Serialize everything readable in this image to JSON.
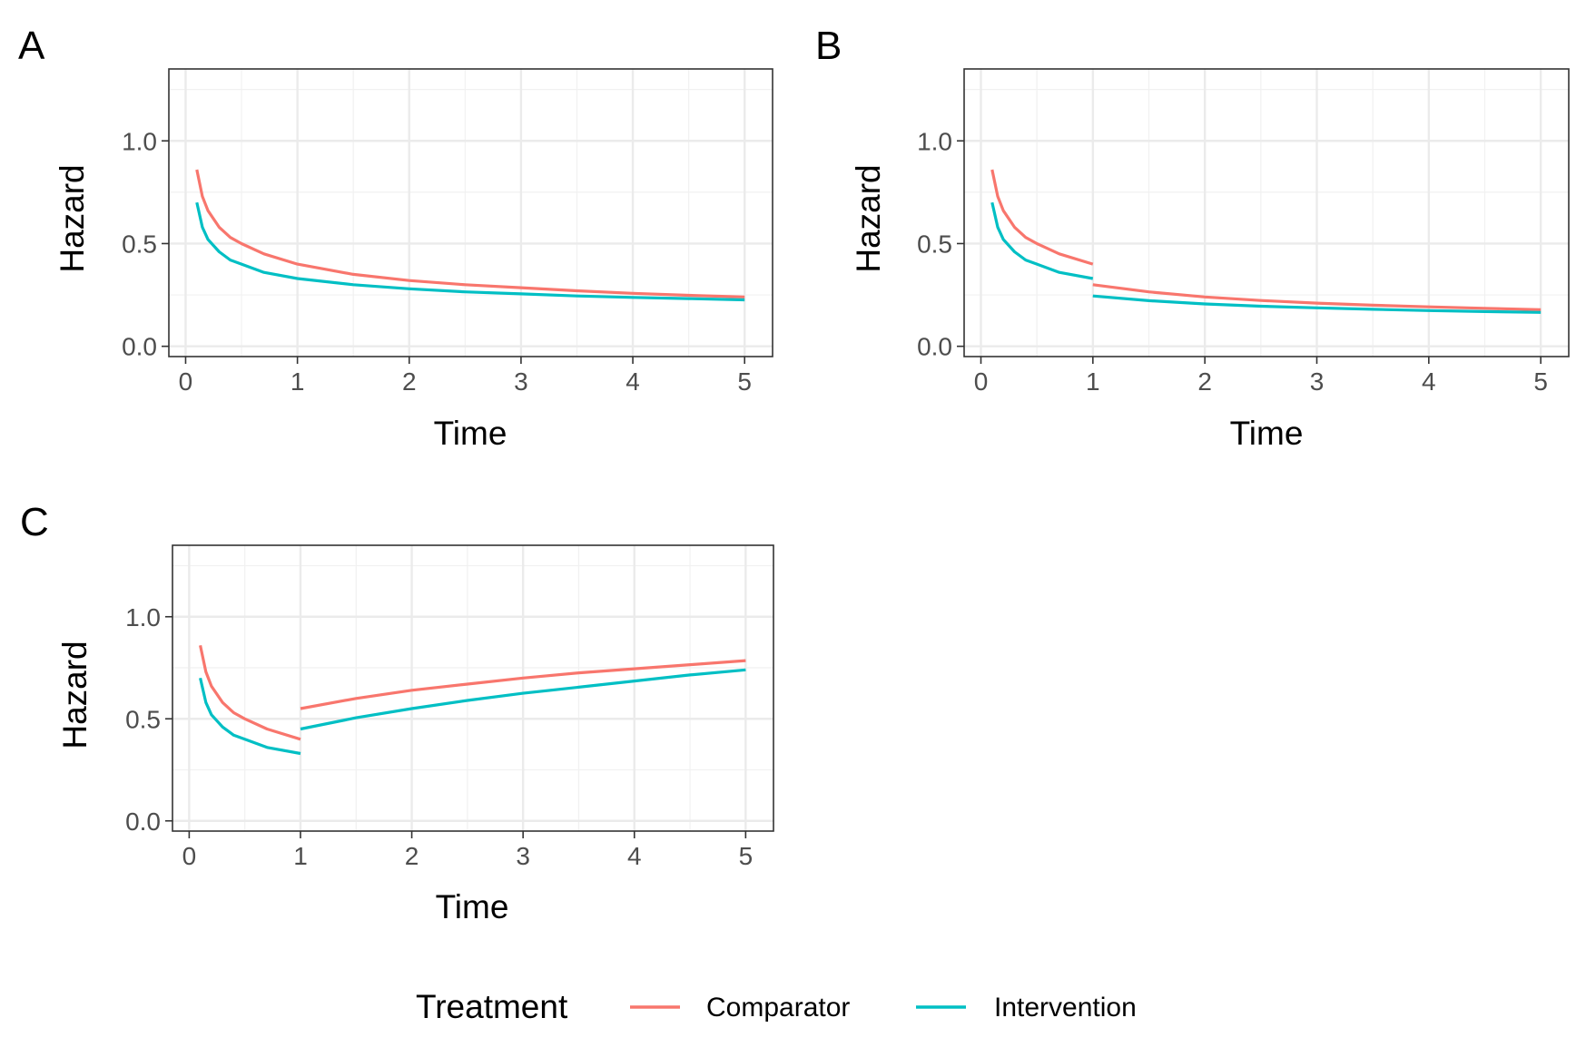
{
  "chart_data": [
    {
      "type": "line",
      "tag": "A",
      "xlabel": "Time",
      "ylabel": "Hazard",
      "xlim": [
        -0.15,
        5.25
      ],
      "ylim": [
        -0.05,
        1.35
      ],
      "xticks": [
        0,
        1,
        2,
        3,
        4,
        5
      ],
      "xtick_labels": [
        "0",
        "1",
        "2",
        "3",
        "4",
        "5"
      ],
      "yticks": [
        0,
        0.5,
        1
      ],
      "ytick_labels": [
        "0.0",
        "0.5",
        "1.0"
      ],
      "grid": true,
      "series": [
        {
          "name": "Comparator",
          "color": "#F8766D",
          "x": [
            0.1,
            0.15,
            0.2,
            0.3,
            0.4,
            0.5,
            0.7,
            1.0,
            1.5,
            2.0,
            2.5,
            3.0,
            3.5,
            4.0,
            4.5,
            5.0
          ],
          "y": [
            0.86,
            0.73,
            0.66,
            0.58,
            0.53,
            0.5,
            0.45,
            0.4,
            0.35,
            0.32,
            0.3,
            0.285,
            0.27,
            0.258,
            0.248,
            0.24
          ]
        },
        {
          "name": "Intervention",
          "color": "#00BFC4",
          "x": [
            0.1,
            0.15,
            0.2,
            0.3,
            0.4,
            0.5,
            0.7,
            1.0,
            1.5,
            2.0,
            2.5,
            3.0,
            3.5,
            4.0,
            4.5,
            5.0
          ],
          "y": [
            0.7,
            0.58,
            0.52,
            0.46,
            0.42,
            0.4,
            0.36,
            0.33,
            0.3,
            0.28,
            0.265,
            0.255,
            0.245,
            0.238,
            0.232,
            0.226
          ]
        }
      ]
    },
    {
      "type": "line",
      "tag": "B",
      "xlabel": "Time",
      "ylabel": "Hazard",
      "xlim": [
        -0.15,
        5.25
      ],
      "ylim": [
        -0.05,
        1.35
      ],
      "xticks": [
        0,
        1,
        2,
        3,
        4,
        5
      ],
      "xtick_labels": [
        "0",
        "1",
        "2",
        "3",
        "4",
        "5"
      ],
      "yticks": [
        0,
        0.5,
        1
      ],
      "ytick_labels": [
        "0.0",
        "0.5",
        "1.0"
      ],
      "grid": true,
      "series": [
        {
          "name": "Comparator",
          "color": "#F8766D",
          "segments": [
            {
              "x": [
                0.1,
                0.15,
                0.2,
                0.3,
                0.4,
                0.5,
                0.7,
                1.0
              ],
              "y": [
                0.86,
                0.73,
                0.66,
                0.58,
                0.53,
                0.5,
                0.45,
                0.4
              ]
            },
            {
              "x": [
                1.0,
                1.5,
                2.0,
                2.5,
                3.0,
                3.5,
                4.0,
                4.5,
                5.0
              ],
              "y": [
                0.3,
                0.265,
                0.24,
                0.223,
                0.21,
                0.2,
                0.192,
                0.185,
                0.178
              ]
            }
          ]
        },
        {
          "name": "Intervention",
          "color": "#00BFC4",
          "segments": [
            {
              "x": [
                0.1,
                0.15,
                0.2,
                0.3,
                0.4,
                0.5,
                0.7,
                1.0
              ],
              "y": [
                0.7,
                0.58,
                0.52,
                0.46,
                0.42,
                0.4,
                0.36,
                0.33
              ]
            },
            {
              "x": [
                1.0,
                1.5,
                2.0,
                2.5,
                3.0,
                3.5,
                4.0,
                4.5,
                5.0
              ],
              "y": [
                0.245,
                0.222,
                0.206,
                0.195,
                0.187,
                0.18,
                0.174,
                0.169,
                0.165
              ]
            }
          ]
        }
      ]
    },
    {
      "type": "line",
      "tag": "C",
      "xlabel": "Time",
      "ylabel": "Hazard",
      "xlim": [
        -0.15,
        5.25
      ],
      "ylim": [
        -0.05,
        1.35
      ],
      "xticks": [
        0,
        1,
        2,
        3,
        4,
        5
      ],
      "xtick_labels": [
        "0",
        "1",
        "2",
        "3",
        "4",
        "5"
      ],
      "yticks": [
        0,
        0.5,
        1
      ],
      "ytick_labels": [
        "0.0",
        "0.5",
        "1.0"
      ],
      "grid": true,
      "series": [
        {
          "name": "Comparator",
          "color": "#F8766D",
          "segments": [
            {
              "x": [
                0.1,
                0.15,
                0.2,
                0.3,
                0.4,
                0.5,
                0.7,
                1.0
              ],
              "y": [
                0.86,
                0.73,
                0.66,
                0.58,
                0.53,
                0.5,
                0.45,
                0.4
              ]
            },
            {
              "x": [
                1.0,
                1.5,
                2.0,
                2.5,
                3.0,
                3.5,
                4.0,
                4.5,
                5.0
              ],
              "y": [
                0.55,
                0.6,
                0.64,
                0.67,
                0.7,
                0.725,
                0.745,
                0.765,
                0.785
              ]
            }
          ]
        },
        {
          "name": "Intervention",
          "color": "#00BFC4",
          "segments": [
            {
              "x": [
                0.1,
                0.15,
                0.2,
                0.3,
                0.4,
                0.5,
                0.7,
                1.0
              ],
              "y": [
                0.7,
                0.58,
                0.52,
                0.46,
                0.42,
                0.4,
                0.36,
                0.33
              ]
            },
            {
              "x": [
                1.0,
                1.5,
                2.0,
                2.5,
                3.0,
                3.5,
                4.0,
                4.5,
                5.0
              ],
              "y": [
                0.45,
                0.505,
                0.55,
                0.59,
                0.625,
                0.655,
                0.685,
                0.715,
                0.74
              ]
            }
          ]
        }
      ]
    }
  ],
  "legend": {
    "title": "Treatment",
    "position": "bottom",
    "entries": [
      {
        "label": "Comparator",
        "color": "#F8766D"
      },
      {
        "label": "Intervention",
        "color": "#00BFC4"
      }
    ]
  }
}
